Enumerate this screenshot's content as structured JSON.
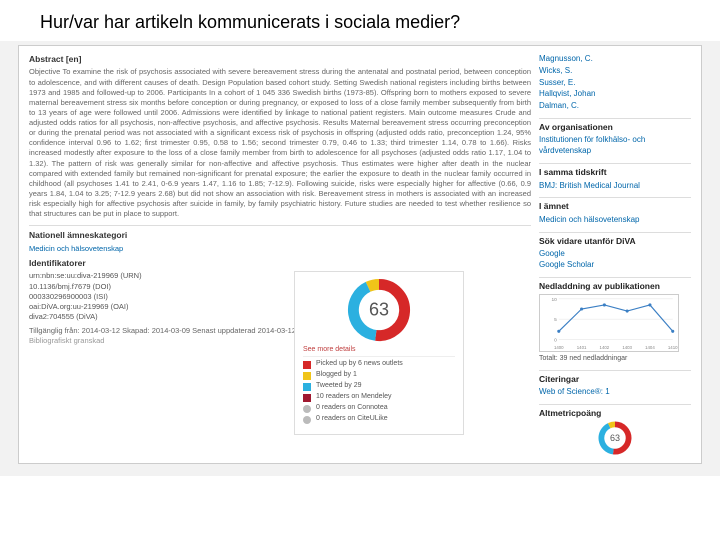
{
  "header": {
    "title": "Hur/var har artikeln kommunicerats i sociala medier?"
  },
  "main": {
    "abstract_label": "Abstract [en]",
    "abstract_text": "Objective To examine the risk of psychosis associated with severe bereavement stress during the antenatal and postnatal period, between conception to adolescence, and with different causes of death. Design Population based cohort study. Setting Swedish national registers including births between 1973 and 1985 and followed-up to 2006. Participants In a cohort of 1 045 336 Swedish births (1973-85). Offspring born to mothers exposed to severe maternal bereavement stress six months before conception or during pregnancy, or exposed to loss of a close family member subsequently from birth to 13 years of age were followed until 2006. Admissions were identified by linkage to national patient registers. Main outcome measures Crude and adjusted odds ratios for all psychosis, non-affective psychosis, and affective psychosis. Results Maternal bereavement stress occurring preconception or during the prenatal period was not associated with a significant excess risk of psychosis in offspring (adjusted odds ratio, preconception 1.24, 95% confidence interval 0.96 to 1.62; first trimester 0.95, 0.58 to 1.56; second trimester 0.79, 0.46 to 1.33; third trimester 1.14, 0.78 to 1.66). Risks increased modestly after exposure to the loss of a close family member from birth to adolescence for all psychoses (adjusted odds ratio 1.17, 1.04 to 1.32). The pattern of risk was generally similar for non-affective and affective psychosis. Thus estimates were higher after death in the nuclear compared with extended family but remained non-significant for prenatal exposure; the earlier the exposure to death in the nuclear family occurred in childhood (all psychoses 1.41 to 2.41, 0-6.9 years 1.47, 1.16 to 1.85; 7-12.9). Following suicide, risks were especially higher for affective (0.66, 0.9 years 1.84, 1.04 to 3.25; 7-12.9 years 2.68) but did not show an association with risk. Bereavement stress in mothers is associated with an increased risk especially high for affective psychosis after suicide in family, by family psychiatric history. Future studies are needed to test whether resilience so that structures can be put in place to support.",
    "nat_subj_label": "Nationell ämneskategori",
    "nat_subj_value": "Medicin och hälsovetenskap",
    "identifiers_label": "Identifikatorer",
    "identifiers": [
      "urn:nbn:se:uu:diva-219969 (URN)",
      "10.1136/bmj.f7679 (DOI)",
      "000330296900003 (ISI)",
      "oai:DiVA.org:uu-219969 (OAI)",
      "diva2:704555 (DiVA)"
    ],
    "footer_dates": "Tillgänglig från: 2014-03-12 Skapad: 2014-03-09 Senast uppdaterad 2014-03-12",
    "footer_status": "Bibliografiskt granskad"
  },
  "altmetric": {
    "score": 63,
    "see_more": "See more details",
    "rows": [
      {
        "kind": "sq",
        "color": "#d62828",
        "text": "Picked up by 6 news outlets"
      },
      {
        "kind": "sq",
        "color": "#f0c419",
        "text": "Blogged by 1"
      },
      {
        "kind": "sq",
        "color": "#2bb0e0",
        "text": "Tweeted by 29"
      },
      {
        "kind": "sq",
        "color": "#a01830",
        "text": "10 readers on Mendeley"
      },
      {
        "kind": "ci",
        "color": "#bbbbbb",
        "text": "0 readers on Connotea"
      },
      {
        "kind": "ci",
        "color": "#bbbbbb",
        "text": "0 readers on CiteULike"
      }
    ],
    "donut_colors": {
      "red": "#d62828",
      "blue": "#2bb0e0",
      "yellow": "#f0c419"
    }
  },
  "side": {
    "authors": [
      "Magnusson, C.",
      "Wicks, S.",
      "Susser, E.",
      "Hallqvist, Johan",
      "Dalman, C."
    ],
    "org_label": "Av organisationen",
    "org_value": "Institutionen för folkhälso- och vårdvetenskap",
    "journal_label": "I samma tidskrift",
    "journal_value": "BMJ: British Medical Journal",
    "subject_label": "I ämnet",
    "subject_value": "Medicin och hälsovetenskap",
    "search_label": "Sök vidare utanför DiVA",
    "search_links": [
      "Google",
      "Google Scholar"
    ],
    "downloads_label": "Nedladdning av publikationen",
    "downloads_total": "Totalt: 39 ned nedladdningar",
    "citations_label": "Citeringar",
    "citations_value": "Web of Science®: 1",
    "altmetric_label": "Altmetricpoäng",
    "chart": {
      "x_labels": [
        "1400",
        "1401",
        "1402",
        "1403",
        "1404",
        "1410"
      ],
      "y_ticks": [
        0,
        5,
        10
      ],
      "y_max": 10,
      "points": [
        2,
        7.5,
        8.5,
        7,
        8.5,
        2
      ],
      "line_color": "#3b7fc4",
      "bg": "#ffffff",
      "grid": "#e0e0e0"
    }
  }
}
